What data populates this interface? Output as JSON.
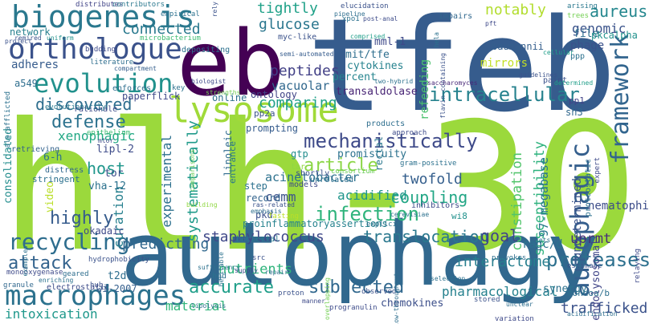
{
  "words": [
    {
      "text": "hlh-30",
      "color": "#9bd93c"
    },
    {
      "text": "tfeb",
      "color": "#365c8d"
    },
    {
      "text": "autophagy",
      "color": "#31688e"
    },
    {
      "text": "eb",
      "color": "#440154"
    },
    {
      "text": "lysosome",
      "color": "#a0da39"
    },
    {
      "text": "biogenesis",
      "color": "#2a788e"
    },
    {
      "text": "orthologue",
      "color": "#3b528b"
    },
    {
      "text": "evolution",
      "color": "#21918c"
    },
    {
      "text": "macrophages",
      "color": "#2c728e"
    },
    {
      "text": "autophagic",
      "color": "#355f8d"
    },
    {
      "text": "framework",
      "color": "#32658e"
    },
    {
      "text": "recycling",
      "color": "#2e6d8e"
    },
    {
      "text": "mechanistically",
      "color": "#3e4a89"
    },
    {
      "text": "intracellular",
      "color": "#26828e"
    },
    {
      "text": "infection",
      "color": "#2fb47c"
    },
    {
      "text": "article",
      "color": "#8bd646"
    },
    {
      "text": "proteases",
      "color": "#2d708e"
    },
    {
      "text": "accurate",
      "color": "#1f9e89"
    },
    {
      "text": "subjected",
      "color": "#31688e"
    },
    {
      "text": "attack",
      "color": "#33638d"
    },
    {
      "text": "highly",
      "color": "#365c8d"
    },
    {
      "text": "translocation",
      "color": "#2a788e"
    },
    {
      "text": "staphylococcus",
      "color": "#3f4889"
    },
    {
      "text": "defense",
      "color": "#2c728e"
    },
    {
      "text": "host",
      "color": "#1f968b"
    },
    {
      "text": "coupling",
      "color": "#21a685"
    },
    {
      "text": "discovered",
      "color": "#2e6e8e"
    },
    {
      "text": "connected",
      "color": "#29798e"
    },
    {
      "text": "comparing",
      "color": "#1fa088"
    },
    {
      "text": "aureus",
      "color": "#24878e"
    },
    {
      "text": "genomic",
      "color": "#3a538b"
    },
    {
      "text": "peptides",
      "color": "#424086"
    },
    {
      "text": "glucose",
      "color": "#2a768e"
    },
    {
      "text": "tightly",
      "color": "#1fa188"
    },
    {
      "text": "notably",
      "color": "#b2dd2d"
    },
    {
      "text": "susceptibility",
      "color": "#2db27d"
    },
    {
      "text": "constipation",
      "color": "#50c46a"
    },
    {
      "text": "interactome",
      "color": "#277f8e"
    },
    {
      "text": "trafficked",
      "color": "#3b528b"
    },
    {
      "text": "nutrients",
      "color": "#2fb47c"
    },
    {
      "text": "experimental",
      "color": "#2d708e"
    },
    {
      "text": "systematically",
      "color": "#1f9a8a"
    },
    {
      "text": "predicting",
      "color": "#31688e"
    },
    {
      "text": "curation",
      "color": "#27808e"
    },
    {
      "text": "xenophagic",
      "color": "#22a884"
    },
    {
      "text": "twofold",
      "color": "#355f8d"
    },
    {
      "text": "acidified",
      "color": "#1f968b"
    },
    {
      "text": "cemm",
      "color": "#3b528b"
    },
    {
      "text": "goal",
      "color": "#404588"
    },
    {
      "text": "uprmt",
      "color": "#472c7a"
    },
    {
      "text": "pharmacological",
      "color": "#26818e"
    },
    {
      "text": "intoxication",
      "color": "#1f988b"
    },
    {
      "text": "material",
      "color": "#31b57b"
    },
    {
      "text": "acinetobacter",
      "color": "#2c718e"
    },
    {
      "text": "97-megabase",
      "color": "#2a768e"
    },
    {
      "text": "nematophilum",
      "color": "#3d4d8a"
    },
    {
      "text": "endolysosomal",
      "color": "#404588"
    },
    {
      "text": "undetermined",
      "color": "#3a538b"
    },
    {
      "text": "ragc/d",
      "color": "#2c718e"
    },
    {
      "text": "vacuolar",
      "color": "#31688e"
    },
    {
      "text": "network",
      "color": "#27808e"
    },
    {
      "text": "adheres",
      "color": "#365c8d"
    },
    {
      "text": "phage",
      "color": "#3b528b"
    },
    {
      "text": "file",
      "color": "#2e6e8e"
    },
    {
      "text": "refeeding",
      "color": "#4ac16d"
    },
    {
      "text": "mml-1",
      "color": "#3e4989"
    },
    {
      "text": "mit/tfe",
      "color": "#2e6e8e"
    },
    {
      "text": "percent",
      "color": "#25848e"
    },
    {
      "text": "transaldolase",
      "color": "#482475"
    },
    {
      "text": "cytokines",
      "color": "#26828e"
    },
    {
      "text": "consolidated",
      "color": "#228d8d"
    },
    {
      "text": "6-h",
      "color": "#2c718e"
    },
    {
      "text": "lipl-2",
      "color": "#3e4c8a"
    },
    {
      "text": "linoleic",
      "color": "#2f6b8e"
    },
    {
      "text": "tor",
      "color": "#3d4d8a"
    },
    {
      "text": "vha-12",
      "color": "#2c728e"
    },
    {
      "text": "video",
      "color": "#bade28"
    },
    {
      "text": "gtp",
      "color": "#228c8d"
    },
    {
      "text": "promiscuity",
      "color": "#2c728e"
    },
    {
      "text": "rectal",
      "color": "#2a778e"
    },
    {
      "text": "pkd",
      "color": "#3b528b"
    },
    {
      "text": "sh3",
      "color": "#31688e"
    },
    {
      "text": "pp1",
      "color": "#414287"
    },
    {
      "text": "wi8",
      "color": "#21918c"
    },
    {
      "text": "t2d",
      "color": "#2e6e8e"
    },
    {
      "text": "wi-2007",
      "color": "#355f8d"
    },
    {
      "text": "chemokines",
      "color": "#3c4f8a"
    },
    {
      "text": "okadaic",
      "color": "#3e4989"
    },
    {
      "text": "a549",
      "color": "#2e6e8e"
    },
    {
      "text": "online",
      "color": "#2c718e"
    },
    {
      "text": "ontology",
      "color": "#414487"
    },
    {
      "text": "pp2a",
      "color": "#3b528b"
    },
    {
      "text": "record",
      "color": "#33638d"
    },
    {
      "text": "step",
      "color": "#2c718e"
    },
    {
      "text": "entrance",
      "color": "#2a768e"
    },
    {
      "text": "prompting",
      "color": "#365c8d"
    },
    {
      "text": "rationale",
      "color": "#3e4c8a"
    },
    {
      "text": "mirrors",
      "color": "#c2df23"
    },
    {
      "text": "synergy",
      "color": "#2c728e"
    },
    {
      "text": "paperflick",
      "color": "#3e4989"
    },
    {
      "text": "proinflammatoryassertions",
      "color": "#26828e"
    },
    {
      "text": "mondoa/b",
      "color": "#2d708e"
    },
    {
      "text": "pkcalpha",
      "color": "#21918c"
    },
    {
      "text": "baumannii",
      "color": "#355f8d"
    },
    {
      "text": "ppp",
      "color": "#2c718e"
    },
    {
      "text": "distributes",
      "color": "#414487"
    },
    {
      "text": "contributors",
      "color": "#2a788e"
    },
    {
      "text": "empirical",
      "color": "#2c718e"
    },
    {
      "text": "remired",
      "color": "#3b528b"
    },
    {
      "text": "uniform",
      "color": "#21918c"
    },
    {
      "text": "budding",
      "color": "#3e4a89"
    },
    {
      "text": "literature",
      "color": "#2e6e8e"
    },
    {
      "text": "microbacterium",
      "color": "#3fbc73"
    },
    {
      "text": "depositing",
      "color": "#2c718e"
    },
    {
      "text": "myc-like",
      "color": "#3b528b"
    },
    {
      "text": "semi-automated",
      "color": "#365c8d"
    },
    {
      "text": "pipeline",
      "color": "#2e6e8e"
    },
    {
      "text": "elucidation",
      "color": "#3b528b"
    },
    {
      "text": "xpo1",
      "color": "#2c718e"
    },
    {
      "text": "post-anal",
      "color": "#3e4c8a"
    },
    {
      "text": "impairs",
      "color": "#31688e"
    },
    {
      "text": "arising",
      "color": "#2a788e"
    },
    {
      "text": "trees",
      "color": "#75d054"
    },
    {
      "text": "pft",
      "color": "#3e4989"
    },
    {
      "text": "comprised",
      "color": "#1f9e89"
    },
    {
      "text": "hela",
      "color": "#2c718e"
    },
    {
      "text": "flavin-containing",
      "color": "#3b528b"
    },
    {
      "text": "two-hybrid",
      "color": "#2c718e"
    },
    {
      "text": "saccharomyces",
      "color": "#482878"
    },
    {
      "text": "cellular",
      "color": "#1f9e89"
    },
    {
      "text": "paint",
      "color": "#3b528b"
    },
    {
      "text": "determined",
      "color": "#1f9e89"
    },
    {
      "text": "biologist",
      "color": "#3e4a89"
    },
    {
      "text": "compartment",
      "color": "#355f8d"
    },
    {
      "text": "enforces",
      "color": "#2e6e8e"
    },
    {
      "text": "key",
      "color": "#2c718e"
    },
    {
      "text": "strengths",
      "color": "#75d054"
    },
    {
      "text": "evolutionarily",
      "color": "#2a788e"
    },
    {
      "text": "epithelium",
      "color": "#3fbc73"
    },
    {
      "text": "mtor",
      "color": "#3e4989"
    },
    {
      "text": "retrieving",
      "color": "#33638d"
    },
    {
      "text": "distress",
      "color": "#31688e"
    },
    {
      "text": "stringent",
      "color": "#2c718e"
    },
    {
      "text": "products",
      "color": "#2e6e8e"
    },
    {
      "text": "consortium",
      "color": "#6ccd5a"
    },
    {
      "text": "approach",
      "color": "#3e4c8a"
    },
    {
      "text": "tar",
      "color": "#90d743"
    },
    {
      "text": "gram-positive",
      "color": "#2c718e"
    },
    {
      "text": "ras-related",
      "color": "#3b528b"
    },
    {
      "text": "shortly",
      "color": "#3b528b"
    },
    {
      "text": "unrelated",
      "color": "#2e6e8e"
    },
    {
      "text": "models",
      "color": "#3e4a89"
    },
    {
      "text": "inhibitors",
      "color": "#3e4989"
    },
    {
      "text": "cerevisiae",
      "color": "#2c718e"
    },
    {
      "text": "comparisons",
      "color": "#6ccd5a"
    },
    {
      "text": "building",
      "color": "#90d743"
    },
    {
      "text": "emphasis",
      "color": "#2e6e8e"
    },
    {
      "text": "fasting",
      "color": "#bade28"
    },
    {
      "text": "bacterial",
      "color": "#2a788e"
    },
    {
      "text": "hydrophobicity",
      "color": "#3b528b"
    },
    {
      "text": "monooxygenase",
      "color": "#3e4a89"
    },
    {
      "text": "examples",
      "color": "#2c718e"
    },
    {
      "text": "granule",
      "color": "#31688e"
    },
    {
      "text": "hub",
      "color": "#3b528b"
    },
    {
      "text": "geared",
      "color": "#2e6e8e"
    },
    {
      "text": "electrostatic",
      "color": "#3e4c8a"
    },
    {
      "text": "enriching",
      "color": "#2c718e"
    },
    {
      "text": "hgd",
      "color": "#2c718e"
    },
    {
      "text": "src",
      "color": "#3b528b"
    },
    {
      "text": "repair",
      "color": "#2e6e8e"
    },
    {
      "text": "supply",
      "color": "#3e4989"
    },
    {
      "text": "sufficiency",
      "color": "#2c718e"
    },
    {
      "text": "heritable",
      "color": "#2c718e"
    },
    {
      "text": "lipolysis",
      "color": "#2e6e8e"
    },
    {
      "text": "proton",
      "color": "#3b528b"
    },
    {
      "text": "manner",
      "color": "#3e4a89"
    },
    {
      "text": "overlapping",
      "color": "#75d054"
    },
    {
      "text": "progranulin",
      "color": "#3e4c8a"
    },
    {
      "text": "observed",
      "color": "#3b528b"
    },
    {
      "text": "low-throughput",
      "color": "#2e6e8e"
    },
    {
      "text": "selection",
      "color": "#2c718e"
    },
    {
      "text": "stored",
      "color": "#3b528b"
    },
    {
      "text": "unclear",
      "color": "#2e6e8e"
    },
    {
      "text": "variation",
      "color": "#3e4989"
    },
    {
      "text": "explicit",
      "color": "#2c718e"
    },
    {
      "text": "provokes",
      "color": "#2e6e8e"
    },
    {
      "text": "estimate",
      "color": "#3b528b"
    },
    {
      "text": "sets",
      "color": "#2c718e"
    },
    {
      "text": "expert",
      "color": "#3e4a89"
    },
    {
      "text": "proteostatic",
      "color": "#2c718e"
    },
    {
      "text": "relaying",
      "color": "#3e4989"
    },
    {
      "text": "rely",
      "color": "#3b528b"
    },
    {
      "text": "project",
      "color": "#3b528b"
    },
    {
      "text": "als-afflicted",
      "color": "#2c718e"
    },
    {
      "text": "guidelines",
      "color": "#3b528b"
    },
    {
      "text": "acidification",
      "color": "#2e6e8e"
    }
  ]
}
